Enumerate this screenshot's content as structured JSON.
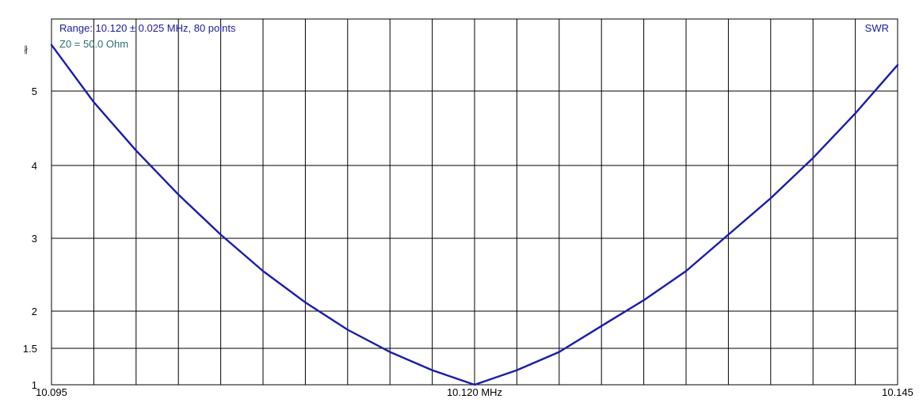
{
  "colors": {
    "curve": "#1a1ab4",
    "range_text": "#1a1aa8",
    "z0_text": "#2a7070",
    "grid": "#000000",
    "background": "#ffffff"
  },
  "corner_mark": "∦",
  "chart_data": {
    "type": "line",
    "title": "",
    "range_label": "Range: 10.120 ± 0.025 MHz, 80 points",
    "z0_label": "Z0 = 50.0 Ohm",
    "series": [
      {
        "name": "SWR",
        "x": [
          10.095,
          10.0975,
          10.1,
          10.1025,
          10.105,
          10.1075,
          10.11,
          10.1125,
          10.115,
          10.1175,
          10.12,
          10.1225,
          10.125,
          10.1275,
          10.13,
          10.1325,
          10.135,
          10.1375,
          10.14,
          10.1425,
          10.145
        ],
        "y": [
          5.62,
          4.85,
          4.2,
          3.6,
          3.05,
          2.55,
          2.12,
          1.75,
          1.45,
          1.2,
          1.0,
          1.2,
          1.45,
          1.8,
          2.15,
          2.55,
          3.05,
          3.55,
          4.1,
          4.7,
          5.35
        ]
      }
    ],
    "xlim": [
      10.095,
      10.145
    ],
    "ylim": [
      1,
      5.62
    ],
    "y_scale": "swr",
    "x_ticks": [
      {
        "value": 10.095,
        "label": "10.095"
      },
      {
        "value": 10.12,
        "label": "10.120 MHz"
      },
      {
        "value": 10.145,
        "label": "10.145"
      }
    ],
    "y_ticks": [
      {
        "value": 1,
        "label": "1"
      },
      {
        "value": 1.5,
        "label": "1.5"
      },
      {
        "value": 2,
        "label": "2"
      },
      {
        "value": 3,
        "label": "3"
      },
      {
        "value": 4,
        "label": "4"
      },
      {
        "value": 5,
        "label": "5"
      }
    ],
    "x_grid_divisions": 20,
    "grid": true
  }
}
